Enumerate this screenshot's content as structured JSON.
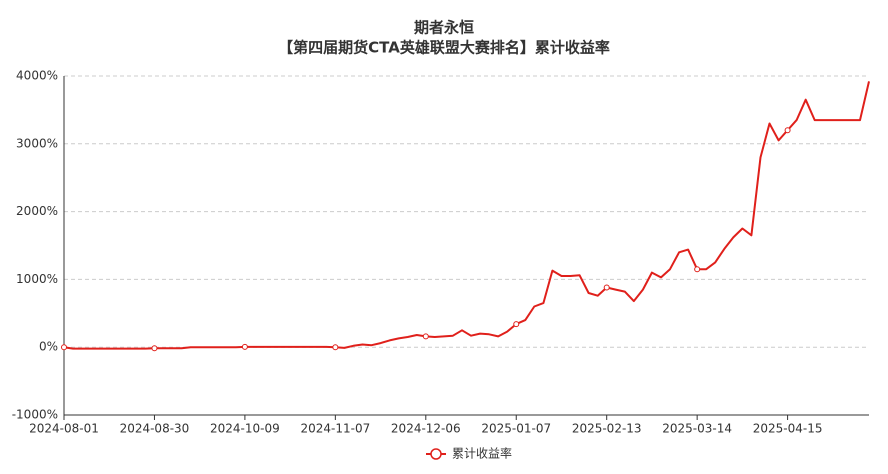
{
  "chart_data": {
    "type": "line",
    "title": "期者永恒",
    "subtitle": "【第四届期货CTA英雄联盟大赛排名】累计收益率",
    "categories": [
      "2024-08-01",
      null,
      null,
      null,
      null,
      null,
      null,
      null,
      null,
      null,
      "2024-08-30",
      null,
      null,
      null,
      null,
      null,
      null,
      null,
      null,
      null,
      "2024-10-09",
      null,
      null,
      null,
      null,
      null,
      null,
      null,
      null,
      null,
      "2024-11-07",
      null,
      null,
      null,
      null,
      null,
      null,
      null,
      null,
      null,
      "2024-12-06",
      null,
      null,
      null,
      null,
      null,
      null,
      null,
      null,
      null,
      "2025-01-07",
      null,
      null,
      null,
      null,
      null,
      null,
      null,
      null,
      null,
      "2025-02-13",
      null,
      null,
      null,
      null,
      null,
      null,
      null,
      null,
      null,
      "2025-03-14",
      null,
      null,
      null,
      null,
      null,
      null,
      null,
      null,
      null,
      "2025-04-15",
      null,
      null,
      null,
      null,
      null,
      null,
      null,
      null,
      null
    ],
    "series": [
      {
        "name": "累计收益率",
        "color": "#e0201b",
        "values": [
          0,
          -20,
          -20,
          -20,
          -20,
          -20,
          -20,
          -20,
          -20,
          -20,
          -15,
          -15,
          -15,
          -15,
          0,
          0,
          0,
          0,
          0,
          0,
          5,
          5,
          5,
          5,
          5,
          5,
          5,
          5,
          5,
          5,
          0,
          -10,
          20,
          40,
          30,
          60,
          100,
          130,
          150,
          180,
          160,
          150,
          160,
          170,
          250,
          170,
          200,
          190,
          160,
          230,
          340,
          400,
          600,
          650,
          1130,
          1050,
          1050,
          1060,
          800,
          760,
          880,
          850,
          820,
          680,
          850,
          1100,
          1030,
          1150,
          1400,
          1440,
          1150,
          1150,
          1250,
          1450,
          1620,
          1750,
          1650,
          2800,
          3300,
          3050,
          3200,
          3350,
          3650,
          3350,
          3350,
          3350,
          3350,
          3350,
          3350,
          3920
        ]
      }
    ],
    "ylim": [
      -1000,
      4000
    ],
    "yticks": [
      {
        "value": -1000,
        "label": "-1000%"
      },
      {
        "value": 0,
        "label": "0%"
      },
      {
        "value": 1000,
        "label": "1000%"
      },
      {
        "value": 2000,
        "label": "2000%"
      },
      {
        "value": 3000,
        "label": "3000%"
      },
      {
        "value": 4000,
        "label": "4000%"
      }
    ],
    "grid": true,
    "legend": "bottom"
  }
}
